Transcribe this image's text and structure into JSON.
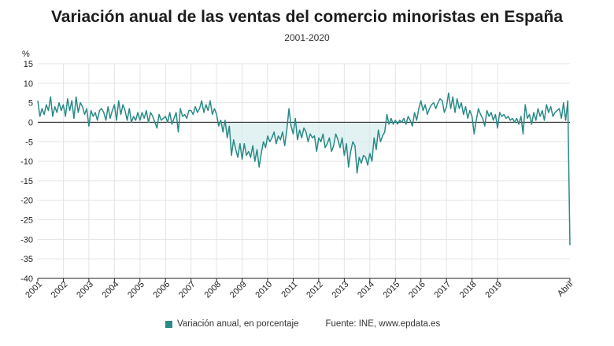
{
  "colors": {
    "line": "#2a8a86",
    "area": "#d6ecee",
    "grid": "#e4e4e4",
    "axis": "#222222"
  },
  "legend": {
    "series_label": "Variación anual, en porcentaje",
    "source": "Fuente: INE, www.epdata.es"
  },
  "chart_data": {
    "type": "line",
    "title": "Variación anual de las ventas del comercio minoristas en España",
    "subtitle": "2001-2020",
    "ylabel": "%",
    "xlabel": "",
    "ylim": [
      -40,
      15
    ],
    "yticks": [
      15,
      10,
      5,
      0,
      -5,
      -10,
      -15,
      -20,
      -25,
      -30,
      -35,
      -40
    ],
    "xtick_labels": [
      "2001",
      "2002",
      "2003",
      "2004",
      "2005",
      "2006",
      "2007",
      "2008",
      "2009",
      "2010",
      "2011",
      "2012",
      "2013",
      "2014",
      "2015",
      "2016",
      "2017",
      "2018",
      "2019",
      "Abril"
    ],
    "grid": true,
    "legend_position": "bottom",
    "x_start": "2001-01",
    "series": [
      {
        "name": "Variación anual, en porcentaje",
        "values": [
          5.5,
          1.5,
          3.5,
          2,
          4.5,
          3,
          6.5,
          1.5,
          4,
          2.5,
          5,
          3,
          4.5,
          1.5,
          6,
          3,
          5.5,
          1,
          6.5,
          2.5,
          5,
          4,
          2,
          3.5,
          -1,
          3,
          1.5,
          2.5,
          0.5,
          3,
          3.5,
          2.5,
          0.5,
          4,
          1,
          3,
          4.5,
          0.5,
          5.5,
          2,
          4.5,
          3,
          0.5,
          3.5,
          0,
          1.5,
          0.5,
          2.5,
          0.5,
          2.5,
          1,
          3,
          0,
          2.5,
          1.5,
          0,
          -1.5,
          2,
          0.5,
          1,
          1.5,
          0,
          2.5,
          -0.5,
          1,
          2.5,
          -2.5,
          3.5,
          1.5,
          2,
          1,
          3,
          3,
          2,
          4,
          2.5,
          3.5,
          5.5,
          2.5,
          4.5,
          3,
          5.5,
          2,
          3.5,
          2,
          -1,
          0.5,
          -2.5,
          0.5,
          -4,
          -1,
          -8.5,
          -4.5,
          -7,
          -9,
          -5.5,
          -9.5,
          -5.5,
          -8.5,
          -7.5,
          -9,
          -6,
          -10,
          -7,
          -11.5,
          -8,
          -5,
          -6.5,
          -3.5,
          -5,
          -4,
          -2.5,
          -5.5,
          -3.5,
          -4.5,
          -2.5,
          -6,
          -2,
          3.5,
          -1,
          -3,
          1,
          -4.5,
          -2,
          -4,
          -1.5,
          -2.5,
          -5,
          -3,
          -4,
          -3.5,
          -7.5,
          -4,
          -5,
          -3,
          -6.5,
          -5.5,
          -4,
          -7.5,
          -6,
          -3,
          -4.5,
          -6.5,
          -4,
          -8.5,
          -5.5,
          -11.5,
          -7.5,
          -5,
          -6,
          -13,
          -9,
          -10.5,
          -8.5,
          -9,
          -11,
          -8,
          -10,
          -4,
          -7,
          -2,
          -5,
          -3.5,
          -2.5,
          2,
          -0.5,
          1,
          -0.5,
          0.5,
          -0.5,
          0.5,
          0,
          1,
          -0.5,
          1.5,
          0.5,
          -1,
          2.5,
          0.5,
          3.5,
          5.5,
          3,
          4.5,
          2,
          3.5,
          4.5,
          5,
          3.5,
          5,
          6,
          5.5,
          2.5,
          4,
          7.5,
          3.5,
          6.5,
          2.5,
          6,
          3.5,
          5,
          2,
          4,
          1,
          3,
          1.5,
          -3,
          0.5,
          3.5,
          2,
          1,
          -1,
          3,
          1.5,
          2.5,
          0.5,
          2,
          -1.5,
          2.5,
          1.5,
          2,
          1,
          1.5,
          0.5,
          1,
          0,
          1,
          -0.5,
          1.5,
          -3,
          4.5,
          1,
          2,
          -0.5,
          2.5,
          0.5,
          3.5,
          1.5,
          3,
          0.5,
          4.5,
          2.5,
          4,
          1.5,
          2.5,
          3,
          3.5,
          1,
          5,
          0.5,
          5.5,
          -31.5
        ]
      }
    ]
  }
}
